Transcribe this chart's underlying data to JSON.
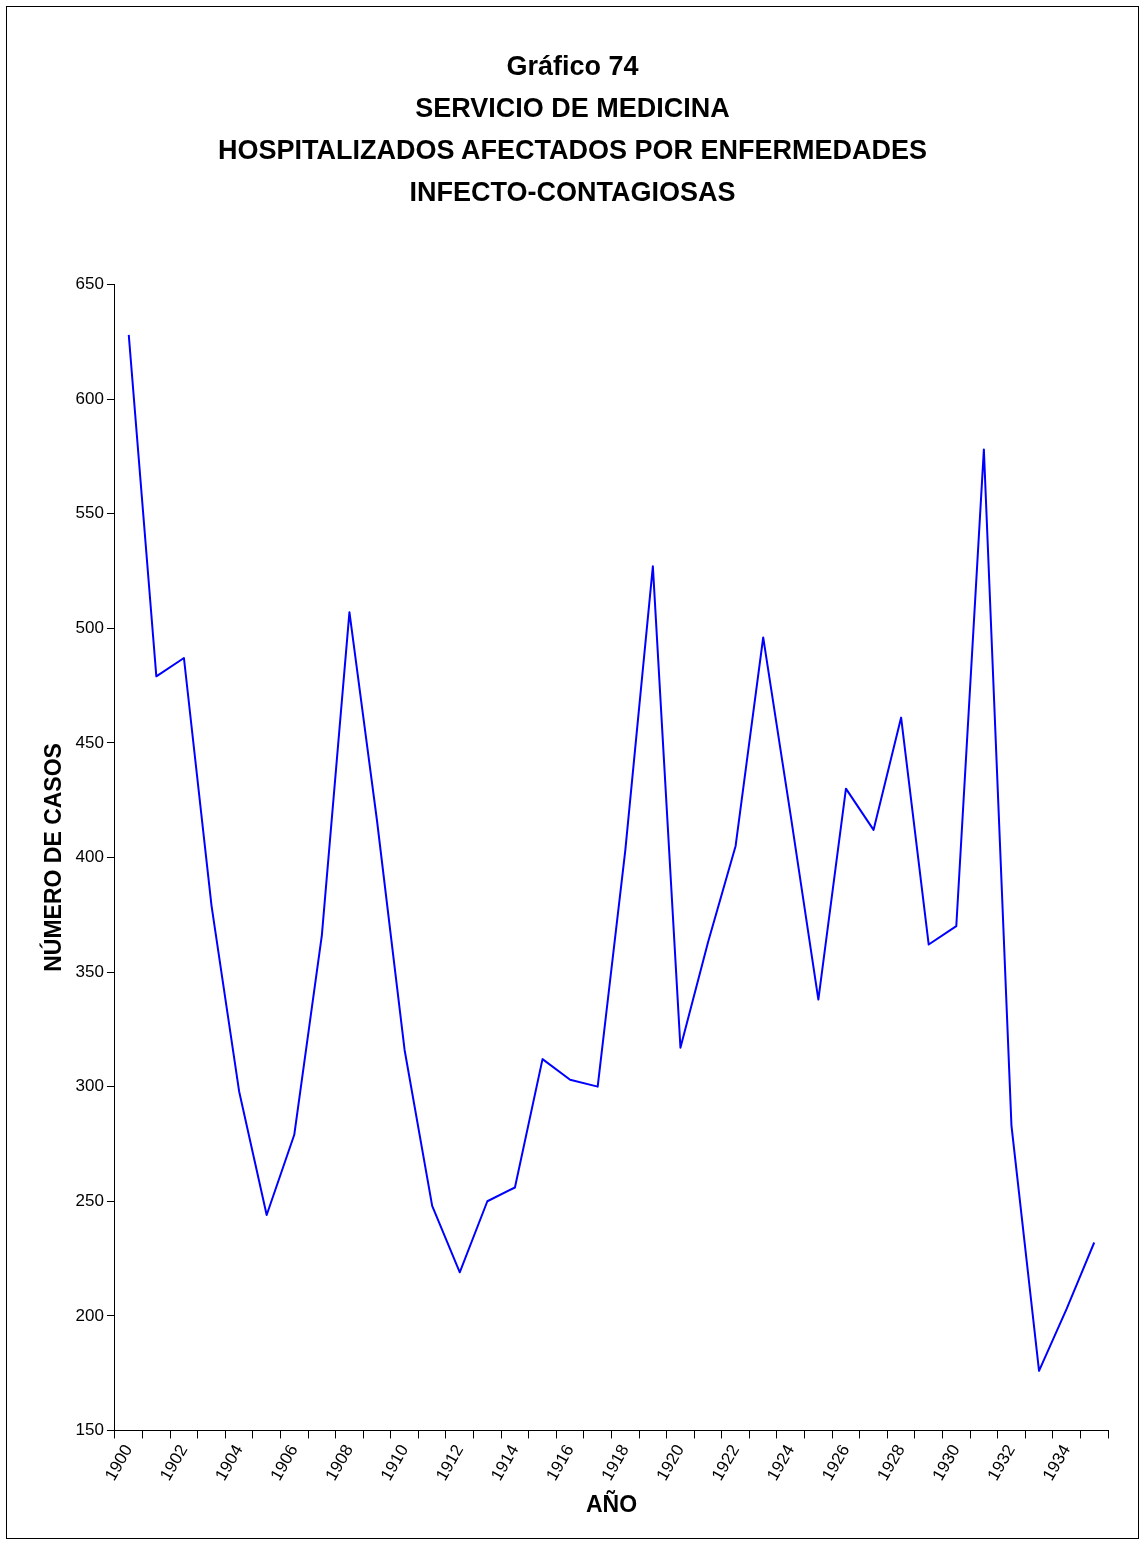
{
  "chart_data": {
    "type": "line",
    "title": "Gráfico 74\nSERVICIO DE MEDICINA\nHOSPITALIZADOS AFECTADOS POR ENFERMEDADES\nINFECTO-CONTAGIOSAS",
    "xlabel": "AÑO",
    "ylabel": "NÚMERO DE CASOS",
    "categories": [
      "1900",
      null,
      "1902",
      null,
      "1904",
      null,
      "1906",
      null,
      "1908",
      null,
      "1910",
      null,
      "1912",
      null,
      "1914",
      null,
      "1916",
      null,
      "1918",
      null,
      "1920",
      null,
      "1922",
      null,
      "1924",
      null,
      "1926",
      null,
      "1928",
      null,
      "1930",
      null,
      "1932",
      null,
      "1934",
      null
    ],
    "series": [
      {
        "color": "#0000ff",
        "values": [
          628,
          479,
          487,
          379,
          298,
          244,
          279,
          366,
          507,
          416,
          316,
          248,
          219,
          250,
          256,
          312,
          303,
          300,
          403,
          527,
          317,
          363,
          405,
          496,
          418,
          338,
          430,
          412,
          461,
          362,
          370,
          578,
          283,
          176,
          203,
          232
        ]
      }
    ],
    "ylim": [
      150,
      650
    ],
    "yticks": [
      150,
      200,
      250,
      300,
      350,
      400,
      450,
      500,
      550,
      600,
      650
    ],
    "grid": false,
    "legend": false,
    "marker": "none",
    "line_style": "solid"
  }
}
